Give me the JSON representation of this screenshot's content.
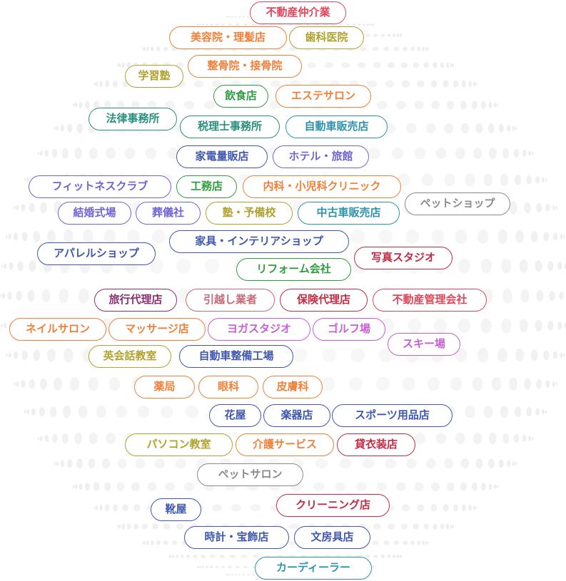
{
  "colors": {
    "red": "#e0465a",
    "orange": "#f0803a",
    "goldenrod": "#b0a22e",
    "green": "#2f9e3e",
    "teal": "#2b8f7e",
    "cyan": "#2f93ad",
    "blue": "#3f57ad",
    "violet": "#6f66d2",
    "magenta": "#c85ed6",
    "purple": "#8b2f6f",
    "crimson": "#c42b45",
    "rose": "#c46a78",
    "gray": "#8a8a8a"
  },
  "tags": [
    {
      "label": "不動産仲介業",
      "color": "red"
    },
    {
      "label": "美容院・理髪店",
      "color": "orange"
    },
    {
      "label": "歯科医院",
      "color": "goldenrod"
    },
    {
      "label": "学習塾",
      "color": "goldenrod"
    },
    {
      "label": "整骨院・接骨院",
      "color": "orange"
    },
    {
      "label": "飲食店",
      "color": "green"
    },
    {
      "label": "エステサロン",
      "color": "orange"
    },
    {
      "label": "法律事務所",
      "color": "teal"
    },
    {
      "label": "税理士事務所",
      "color": "teal"
    },
    {
      "label": "自動車販売店",
      "color": "cyan"
    },
    {
      "label": "家電量販店",
      "color": "blue"
    },
    {
      "label": "ホテル・旅館",
      "color": "violet"
    },
    {
      "label": "フィットネスクラブ",
      "color": "violet"
    },
    {
      "label": "工務店",
      "color": "green"
    },
    {
      "label": "内科・小児科クリニック",
      "color": "orange"
    },
    {
      "label": "ペットショップ",
      "color": "gray"
    },
    {
      "label": "結婚式場",
      "color": "violet"
    },
    {
      "label": "葬儀社",
      "color": "violet"
    },
    {
      "label": "塾・予備校",
      "color": "goldenrod"
    },
    {
      "label": "中古車販売店",
      "color": "cyan"
    },
    {
      "label": "家具・インテリアショップ",
      "color": "blue"
    },
    {
      "label": "アパレルショップ",
      "color": "blue"
    },
    {
      "label": "リフォーム会社",
      "color": "green"
    },
    {
      "label": "写真スタジオ",
      "color": "crimson"
    },
    {
      "label": "旅行代理店",
      "color": "purple"
    },
    {
      "label": "引越し業者",
      "color": "rose"
    },
    {
      "label": "保険代理店",
      "color": "crimson"
    },
    {
      "label": "不動産管理会社",
      "color": "red"
    },
    {
      "label": "ネイルサロン",
      "color": "orange"
    },
    {
      "label": "マッサージ店",
      "color": "orange"
    },
    {
      "label": "ヨガスタジオ",
      "color": "magenta"
    },
    {
      "label": "ゴルフ場",
      "color": "magenta"
    },
    {
      "label": "スキー場",
      "color": "magenta"
    },
    {
      "label": "英会話教室",
      "color": "goldenrod"
    },
    {
      "label": "自動車整備工場",
      "color": "blue"
    },
    {
      "label": "薬局",
      "color": "orange"
    },
    {
      "label": "眼科",
      "color": "orange"
    },
    {
      "label": "皮膚科",
      "color": "orange"
    },
    {
      "label": "花屋",
      "color": "blue"
    },
    {
      "label": "楽器店",
      "color": "blue"
    },
    {
      "label": "スポーツ用品店",
      "color": "blue"
    },
    {
      "label": "パソコン教室",
      "color": "goldenrod"
    },
    {
      "label": "介護サービス",
      "color": "orange"
    },
    {
      "label": "貸衣装店",
      "color": "crimson"
    },
    {
      "label": "ペットサロン",
      "color": "gray"
    },
    {
      "label": "靴屋",
      "color": "blue"
    },
    {
      "label": "クリーニング店",
      "color": "crimson"
    },
    {
      "label": "時計・宝飾店",
      "color": "blue"
    },
    {
      "label": "文房具店",
      "color": "blue"
    },
    {
      "label": "カーディーラー",
      "color": "cyan"
    }
  ]
}
